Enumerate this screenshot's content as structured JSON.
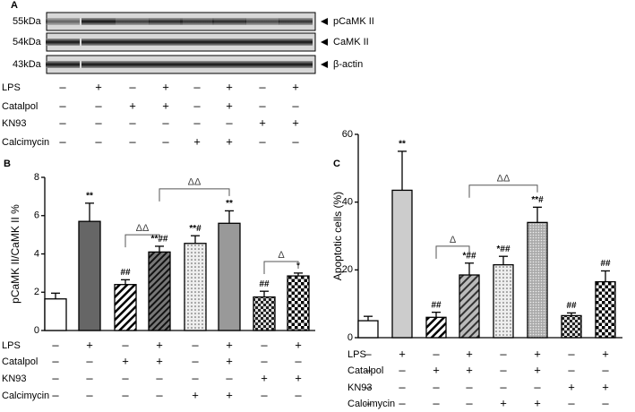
{
  "panels": [
    "A",
    "B",
    "C"
  ],
  "blot": {
    "markers": [
      "55kDa",
      "54kDa",
      "43kDa"
    ],
    "proteins": [
      "pCaMK II",
      "CaMK II",
      "β-actin"
    ]
  },
  "treatments": [
    {
      "label": "LPS",
      "marks": [
        "–",
        "+",
        "–",
        "+",
        "–",
        "+",
        "–",
        "+"
      ]
    },
    {
      "label": "Catalpol",
      "marks": [
        "–",
        "–",
        "+",
        "+",
        "–",
        "+",
        "–",
        "–"
      ]
    },
    {
      "label": "KN93",
      "marks": [
        "–",
        "–",
        "–",
        "–",
        "–",
        "–",
        "+",
        "+"
      ]
    },
    {
      "label": "Calcimycin",
      "marks": [
        "–",
        "–",
        "–",
        "–",
        "+",
        "+",
        "–",
        "–"
      ]
    }
  ],
  "chart_data": [
    {
      "type": "bar",
      "ylabel": "pCaMK II/CaMK II %",
      "categories": [
        null,
        null,
        null,
        null,
        null,
        null,
        null,
        null
      ],
      "values": [
        1.65,
        5.7,
        2.4,
        4.1,
        4.55,
        5.6,
        1.75,
        2.85
      ],
      "errors": [
        0.3,
        0.95,
        0.25,
        0.3,
        0.4,
        0.65,
        0.3,
        0.15
      ],
      "annotations": [
        null,
        "**",
        "##",
        "**##",
        "**#",
        "**",
        "##",
        "*"
      ],
      "brackets": [
        "ΔΔ",
        "ΔΔ",
        "Δ"
      ],
      "ylim": [
        0,
        8
      ],
      "yticks": [
        0,
        2,
        4,
        6,
        8
      ]
    },
    {
      "type": "bar",
      "ylabel": "Apoptotic cells (%)",
      "categories": [
        null,
        null,
        null,
        null,
        null,
        null,
        null,
        null
      ],
      "values": [
        5,
        43.5,
        6,
        18.5,
        21.5,
        34,
        6.5,
        16.5
      ],
      "errors": [
        1.3,
        11.5,
        1.5,
        3.5,
        2.5,
        4.5,
        0.8,
        3.2
      ],
      "annotations": [
        null,
        "**",
        "##",
        "*##",
        "*##",
        "**#",
        "##",
        "##"
      ],
      "brackets": [
        "Δ",
        "ΔΔ"
      ],
      "ylim": [
        0,
        60
      ],
      "yticks": [
        0,
        20,
        40,
        60
      ]
    }
  ]
}
